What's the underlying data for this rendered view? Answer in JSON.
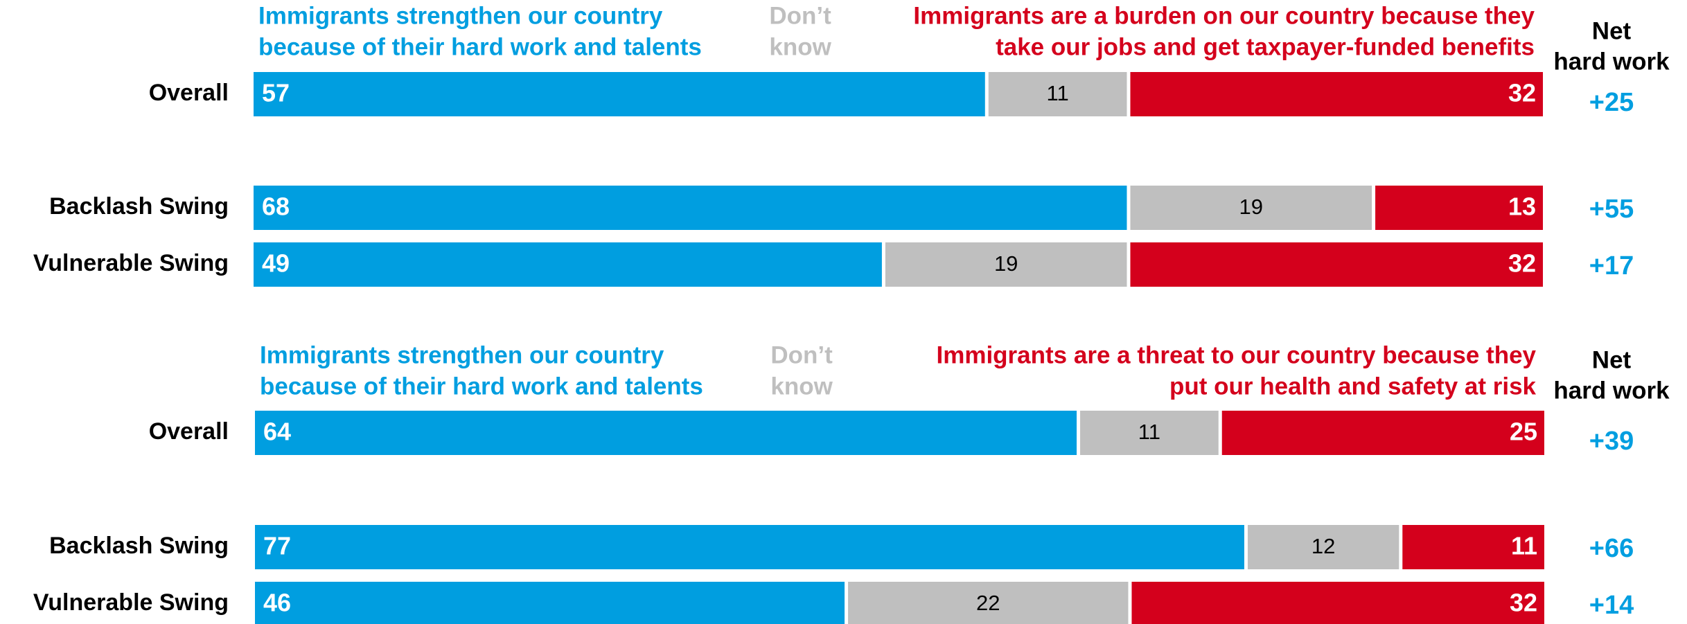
{
  "colors": {
    "hard_work": "#009ee0",
    "dont_know": "#bfbfbf",
    "negative": "#d4001c",
    "row_label": "#000000",
    "header_dk": "#bfbfbf",
    "white": "#ffffff"
  },
  "chart_data": [
    {
      "type": "bar",
      "stacked": true,
      "orientation": "horizontal",
      "legend_placement": "top",
      "series_headers": {
        "hard_work": [
          "Immigrants strengthen our country",
          "because of their hard work and talents"
        ],
        "dont_know": [
          "Don’t",
          "know"
        ],
        "negative": [
          "Immigrants are a burden on our country because they",
          "take our jobs and get taxpayer-funded benefits"
        ],
        "net": [
          "Net",
          "hard work"
        ]
      },
      "categories": [
        "Overall",
        "Backlash Swing",
        "Vulnerable Swing"
      ],
      "series": [
        {
          "values": [
            57,
            68,
            49
          ]
        },
        {
          "values": [
            11,
            19,
            19
          ]
        },
        {
          "values": [
            32,
            13,
            32
          ]
        }
      ],
      "net": [
        "+25",
        "+55",
        "+17"
      ]
    },
    {
      "type": "bar",
      "stacked": true,
      "orientation": "horizontal",
      "legend_placement": "top",
      "series_headers": {
        "hard_work": [
          "Immigrants strengthen our country",
          "because of their hard work and talents"
        ],
        "dont_know": [
          "Don’t",
          "know"
        ],
        "negative": [
          "Immigrants are a threat to our country because they",
          "put our health and safety at risk"
        ],
        "net": [
          "Net",
          "hard work"
        ]
      },
      "categories": [
        "Overall",
        "Backlash Swing",
        "Vulnerable Swing"
      ],
      "series": [
        {
          "values": [
            64,
            77,
            46
          ]
        },
        {
          "values": [
            11,
            12,
            22
          ]
        },
        {
          "values": [
            25,
            11,
            32
          ]
        }
      ],
      "net": [
        "+39",
        "+66",
        "+14"
      ]
    }
  ]
}
